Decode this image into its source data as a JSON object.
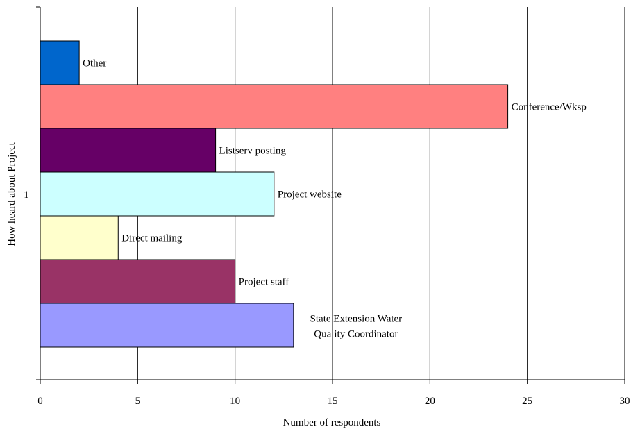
{
  "chart_data": {
    "type": "bar",
    "orientation": "horizontal",
    "title": "",
    "xlabel": "Number of respondents",
    "ylabel": "How heard about Project",
    "y_category_label": "1",
    "xlim": [
      0,
      30
    ],
    "x_ticks": [
      0,
      5,
      10,
      15,
      20,
      25,
      30
    ],
    "grid": "vertical",
    "legend": "none",
    "series": [
      {
        "name": "Other",
        "value": 2,
        "color": "#0066CC"
      },
      {
        "name": "Conference/Wksp",
        "value": 24,
        "color": "#FF8080"
      },
      {
        "name": "Listserv posting",
        "value": 9,
        "color": "#660066"
      },
      {
        "name": "Project website",
        "value": 12,
        "color": "#CCFFFF"
      },
      {
        "name": "Direct mailing",
        "value": 4,
        "color": "#FFFFCC"
      },
      {
        "name": "Project staff",
        "value": 10,
        "color": "#993366"
      },
      {
        "name": "State Extension Water Quality Coordinator",
        "label_lines": [
          "State Extension Water",
          "Quality Coordinator"
        ],
        "value": 13,
        "color": "#9999FF"
      }
    ]
  }
}
